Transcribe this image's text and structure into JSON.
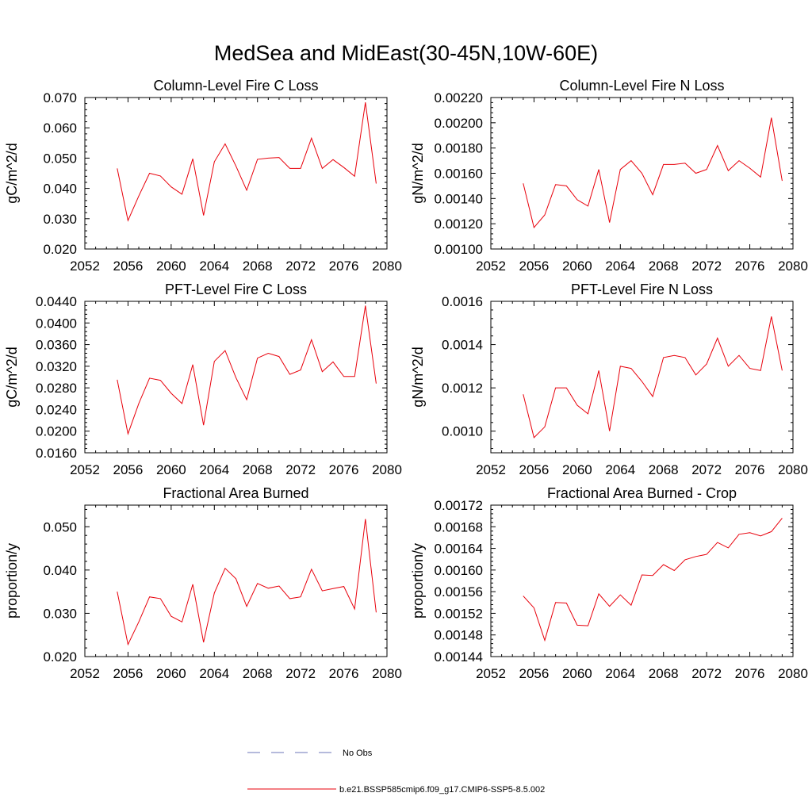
{
  "figure": {
    "title": "MedSea and MidEast(30-45N,10W-60E)"
  },
  "colors": {
    "series": "#e8000b",
    "obs": "#6b74b8",
    "axis": "#000000"
  },
  "legend": {
    "placement": "bottom-center",
    "entries": [
      {
        "label": "No Obs",
        "style": "dashed",
        "color": "#6b74b8"
      },
      {
        "label": "b.e21.BSSP585cmip6.f09_g17.CMIP6-SSP5-8.5.002",
        "style": "solid",
        "color": "#e8000b"
      }
    ]
  },
  "chart_data": [
    {
      "type": "line",
      "title": "Column-Level Fire C Loss",
      "ylabel": "gC/m^2/d",
      "xlim": [
        2052,
        2080
      ],
      "ylim": [
        0.02,
        0.07
      ],
      "xticks": [
        2052,
        2056,
        2060,
        2064,
        2068,
        2072,
        2076,
        2080
      ],
      "yticks": [
        "0.020",
        "0.030",
        "0.040",
        "0.050",
        "0.060",
        "0.070"
      ],
      "x": [
        2055,
        2056,
        2057,
        2058,
        2059,
        2060,
        2061,
        2062,
        2063,
        2064,
        2065,
        2066,
        2067,
        2068,
        2069,
        2070,
        2071,
        2072,
        2073,
        2074,
        2075,
        2076,
        2077,
        2078,
        2079
      ],
      "values": [
        0.0466,
        0.0294,
        0.0375,
        0.045,
        0.0441,
        0.0405,
        0.0381,
        0.0498,
        0.0311,
        0.0488,
        0.0547,
        0.0474,
        0.0394,
        0.0496,
        0.05,
        0.0502,
        0.0466,
        0.0466,
        0.0566,
        0.0466,
        0.0495,
        0.0469,
        0.044,
        0.0684,
        0.0416
      ]
    },
    {
      "type": "line",
      "title": "Column-Level Fire N Loss",
      "ylabel": "gN/m^2/d",
      "xlim": [
        2052,
        2080
      ],
      "ylim": [
        0.001,
        0.0022
      ],
      "xticks": [
        2052,
        2056,
        2060,
        2064,
        2068,
        2072,
        2076,
        2080
      ],
      "yticks": [
        "0.00100",
        "0.00120",
        "0.00140",
        "0.00160",
        "0.00180",
        "0.00200",
        "0.00220"
      ],
      "x": [
        2055,
        2056,
        2057,
        2058,
        2059,
        2060,
        2061,
        2062,
        2063,
        2064,
        2065,
        2066,
        2067,
        2068,
        2069,
        2070,
        2071,
        2072,
        2073,
        2074,
        2075,
        2076,
        2077,
        2078,
        2079
      ],
      "values": [
        0.00152,
        0.00117,
        0.00127,
        0.00151,
        0.0015,
        0.00139,
        0.00134,
        0.00163,
        0.00121,
        0.00163,
        0.0017,
        0.0016,
        0.00143,
        0.00167,
        0.00167,
        0.00168,
        0.0016,
        0.00163,
        0.00182,
        0.00162,
        0.0017,
        0.00164,
        0.00157,
        0.00204,
        0.00154
      ]
    },
    {
      "type": "line",
      "title": "PFT-Level Fire C Loss",
      "ylabel": "gC/m^2/d",
      "xlim": [
        2052,
        2080
      ],
      "ylim": [
        0.016,
        0.044
      ],
      "xticks": [
        2052,
        2056,
        2060,
        2064,
        2068,
        2072,
        2076,
        2080
      ],
      "yticks": [
        "0.0160",
        "0.0200",
        "0.0240",
        "0.0280",
        "0.0320",
        "0.0360",
        "0.0400",
        "0.0440"
      ],
      "x": [
        2055,
        2056,
        2057,
        2058,
        2059,
        2060,
        2061,
        2062,
        2063,
        2064,
        2065,
        2066,
        2067,
        2068,
        2069,
        2070,
        2071,
        2072,
        2073,
        2074,
        2075,
        2076,
        2077,
        2078,
        2079
      ],
      "values": [
        0.0295,
        0.0195,
        0.0251,
        0.0298,
        0.0294,
        0.027,
        0.0251,
        0.0323,
        0.0211,
        0.0329,
        0.0349,
        0.0299,
        0.0258,
        0.0335,
        0.0344,
        0.0338,
        0.0305,
        0.0313,
        0.0369,
        0.031,
        0.0328,
        0.0301,
        0.0301,
        0.0432,
        0.0288
      ]
    },
    {
      "type": "line",
      "title": "PFT-Level Fire N Loss",
      "ylabel": "gN/m^2/d",
      "xlim": [
        2052,
        2080
      ],
      "ylim": [
        0.0009,
        0.0016
      ],
      "xticks": [
        2052,
        2056,
        2060,
        2064,
        2068,
        2072,
        2076,
        2080
      ],
      "yticks": [
        "0.0010",
        "0.0012",
        "0.0014",
        "0.0016"
      ],
      "ytick_values": [
        0.001,
        0.0012,
        0.0014,
        0.0016
      ],
      "x": [
        2055,
        2056,
        2057,
        2058,
        2059,
        2060,
        2061,
        2062,
        2063,
        2064,
        2065,
        2066,
        2067,
        2068,
        2069,
        2070,
        2071,
        2072,
        2073,
        2074,
        2075,
        2076,
        2077,
        2078,
        2079
      ],
      "values": [
        0.00117,
        0.00097,
        0.00102,
        0.0012,
        0.0012,
        0.00112,
        0.00108,
        0.00128,
        0.001,
        0.0013,
        0.00129,
        0.00123,
        0.00116,
        0.00134,
        0.00135,
        0.00134,
        0.00126,
        0.00131,
        0.00143,
        0.0013,
        0.00135,
        0.00129,
        0.00128,
        0.00153,
        0.00128
      ]
    },
    {
      "type": "line",
      "title": "Fractional Area Burned",
      "ylabel": "proportion/y",
      "xlim": [
        2052,
        2080
      ],
      "ylim": [
        0.02,
        0.055
      ],
      "xticks": [
        2052,
        2056,
        2060,
        2064,
        2068,
        2072,
        2076,
        2080
      ],
      "yticks": [
        "0.020",
        "0.030",
        "0.040",
        "0.050"
      ],
      "ytick_values": [
        0.02,
        0.03,
        0.04,
        0.05
      ],
      "x": [
        2055,
        2056,
        2057,
        2058,
        2059,
        2060,
        2061,
        2062,
        2063,
        2064,
        2065,
        2066,
        2067,
        2068,
        2069,
        2070,
        2071,
        2072,
        2073,
        2074,
        2075,
        2076,
        2077,
        2078,
        2079
      ],
      "values": [
        0.035,
        0.0228,
        0.028,
        0.0338,
        0.0334,
        0.0293,
        0.028,
        0.0367,
        0.0233,
        0.0347,
        0.0404,
        0.038,
        0.0316,
        0.0369,
        0.0358,
        0.0363,
        0.0334,
        0.0338,
        0.0402,
        0.0352,
        0.0357,
        0.0362,
        0.031,
        0.0518,
        0.0302
      ]
    },
    {
      "type": "line",
      "title": "Fractional Area Burned - Crop",
      "ylabel": "proportion/y",
      "xlim": [
        2052,
        2080
      ],
      "ylim": [
        0.00144,
        0.00172
      ],
      "xticks": [
        2052,
        2056,
        2060,
        2064,
        2068,
        2072,
        2076,
        2080
      ],
      "yticks": [
        "0.00144",
        "0.00148",
        "0.00152",
        "0.00156",
        "0.00160",
        "0.00164",
        "0.00168",
        "0.00172"
      ],
      "x": [
        2055,
        2056,
        2057,
        2058,
        2059,
        2060,
        2061,
        2062,
        2063,
        2064,
        2065,
        2066,
        2067,
        2068,
        2069,
        2070,
        2071,
        2072,
        2073,
        2074,
        2075,
        2076,
        2077,
        2078,
        2079
      ],
      "values": [
        0.001552,
        0.00153,
        0.00147,
        0.00154,
        0.001539,
        0.001498,
        0.001497,
        0.001556,
        0.001533,
        0.001554,
        0.001535,
        0.001591,
        0.00159,
        0.00161,
        0.001599,
        0.001619,
        0.001625,
        0.001629,
        0.001651,
        0.001641,
        0.001666,
        0.001669,
        0.001663,
        0.001671,
        0.001696
      ]
    }
  ]
}
